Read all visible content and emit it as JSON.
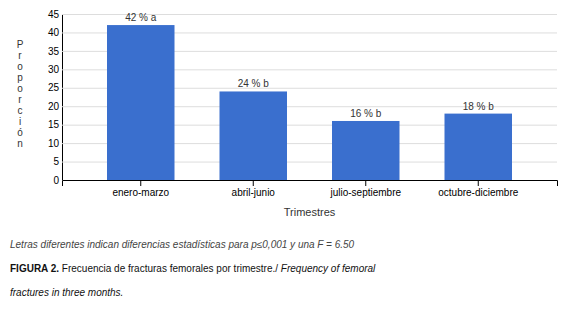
{
  "chart_data": {
    "type": "bar",
    "categories": [
      "enero-marzo",
      "abril-junio",
      "julio-septiembre",
      "octubre-diciembre"
    ],
    "values": [
      42,
      24,
      16,
      18
    ],
    "value_labels": [
      "42 % a",
      "24 % b",
      "16 % b",
      "18 % b"
    ],
    "data_labels": true,
    "color": "#3a6fce",
    "xlabel": "Trimestres",
    "ylabel": "P\nr\no\np\no\nr\nc\ni\nó\nn",
    "ylim": [
      0,
      45
    ],
    "yticks": [
      0,
      5,
      10,
      15,
      20,
      25,
      30,
      35,
      40,
      45
    ],
    "grid": true,
    "annotations": [
      "Letras diferentes indican diferencias estadísticas para p≤0,001 y una F = 6.50",
      "FIGURA 2.",
      " Frecuencia de fracturas femorales por trimestre./ ",
      "Frequency of femoral",
      "fractures in three months."
    ]
  }
}
